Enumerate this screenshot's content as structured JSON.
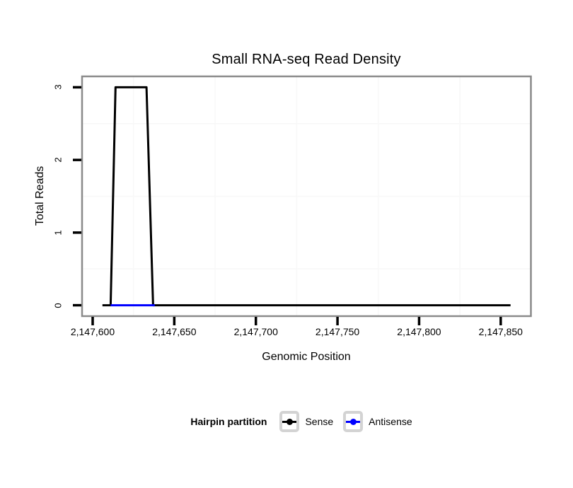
{
  "page": {
    "background": "#ffffff"
  },
  "chart_data": {
    "type": "line",
    "title": "Small RNA-seq Read Density",
    "xlabel": "Genomic Position",
    "ylabel": "Total Reads",
    "xlim": [
      2147593.5,
      2147868.5
    ],
    "ylim": [
      -0.15,
      3.15
    ],
    "x_ticks": {
      "values": [
        2147600,
        2147650,
        2147700,
        2147750,
        2147800,
        2147850
      ],
      "labels": [
        "2,147,600",
        "2,147,650",
        "2,147,700",
        "2,147,750",
        "2,147,800",
        "2,147,850"
      ]
    },
    "y_ticks": {
      "values": [
        0,
        1,
        2,
        3
      ],
      "labels": [
        "0",
        "1",
        "2",
        "3"
      ]
    },
    "x_minor_gridlines": [
      2147625,
      2147675,
      2147725,
      2147775,
      2147825
    ],
    "y_minor_gridlines": [
      0.5,
      1.5,
      2.5
    ],
    "grid": "minor-only",
    "legend_title": "Hairpin partition",
    "legend_position": "bottom",
    "series": [
      {
        "name": "Sense",
        "color": "#000000",
        "marker": "circle",
        "points": [
          [
            2147606,
            0
          ],
          [
            2147611,
            0
          ],
          [
            2147614,
            3
          ],
          [
            2147633,
            3
          ],
          [
            2147637,
            0
          ],
          [
            2147856,
            0
          ]
        ]
      },
      {
        "name": "Antisense",
        "color": "#0000ff",
        "marker": "circle",
        "points": [
          [
            2147611,
            0
          ],
          [
            2147638,
            0
          ]
        ]
      }
    ]
  },
  "colors": {
    "panel_background": "#ffffff",
    "panel_border": "#8a8a8a",
    "minor_gridline": "#f8f8f8",
    "tick": "#000000",
    "legend_key_border": "#d3d3d3",
    "text": "#000000"
  }
}
